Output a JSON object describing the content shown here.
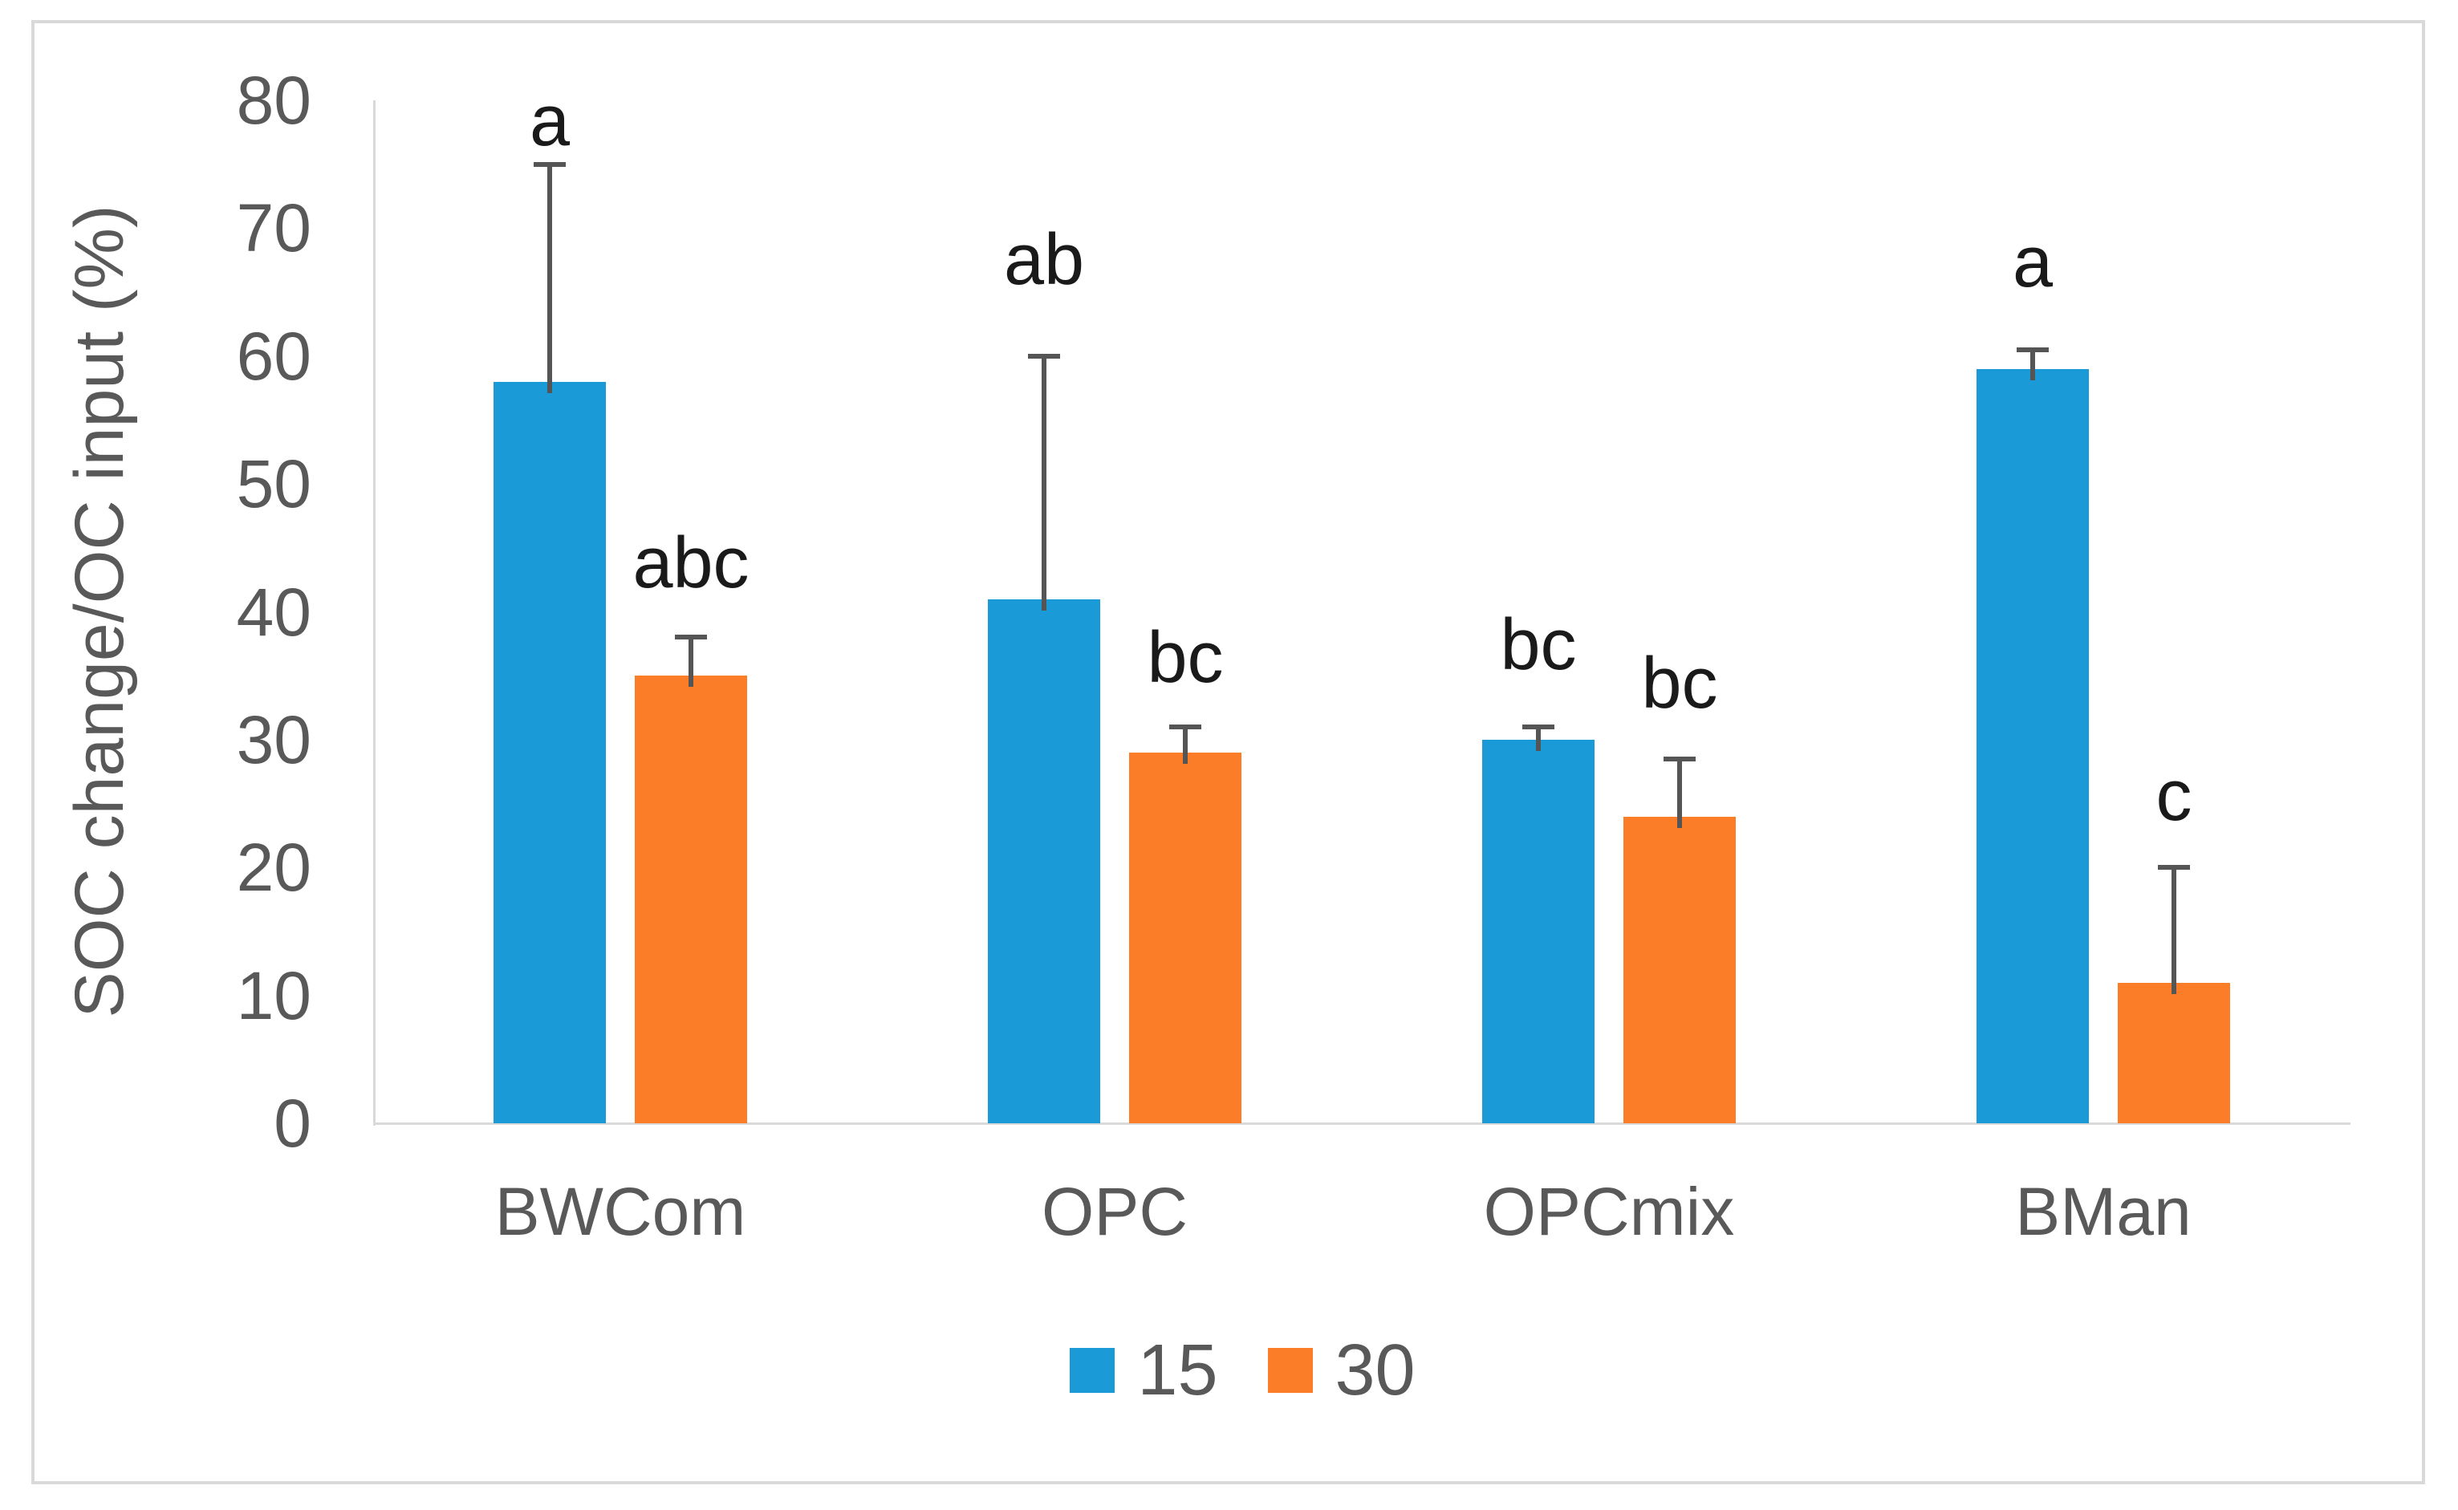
{
  "colors": {
    "series_15": "#1a9ad7",
    "series_30": "#fb7d27",
    "axis_line": "#d9d9d9",
    "frame_border": "#d9d9d9",
    "tick_text": "#595959",
    "sig_letter_text": "#1a1a1a",
    "error_bar": "#555555",
    "background": "#ffffff"
  },
  "chart_data": {
    "type": "bar",
    "title": "",
    "xlabel": "",
    "ylabel": "SOC change/OC input (%)",
    "ylim": [
      0,
      80
    ],
    "yticks": [
      0,
      10,
      20,
      30,
      40,
      50,
      60,
      70,
      80
    ],
    "categories": [
      "BWCom",
      "OPC",
      "OPCmix",
      "BMan"
    ],
    "series": [
      {
        "name": "15",
        "color": "#1a9ad7",
        "values": [
          58,
          41,
          30,
          59
        ],
        "error_top": [
          75,
          60,
          31,
          60.5
        ],
        "sig_letters": [
          "a",
          "ab",
          "bc",
          "a"
        ],
        "sig_letter_y": [
          78.4,
          67.5,
          37.4,
          67.3
        ]
      },
      {
        "name": "30",
        "color": "#fb7d27",
        "values": [
          35,
          29,
          24,
          11
        ],
        "error_top": [
          38,
          31,
          28.5,
          20
        ],
        "sig_letters": [
          "abc",
          "bc",
          "bc",
          "c"
        ],
        "sig_letter_y": [
          43.8,
          36.4,
          34.4,
          25.6
        ]
      }
    ],
    "legend": {
      "position": "bottom-center",
      "entries": [
        "15",
        "30"
      ]
    },
    "grid": false
  }
}
